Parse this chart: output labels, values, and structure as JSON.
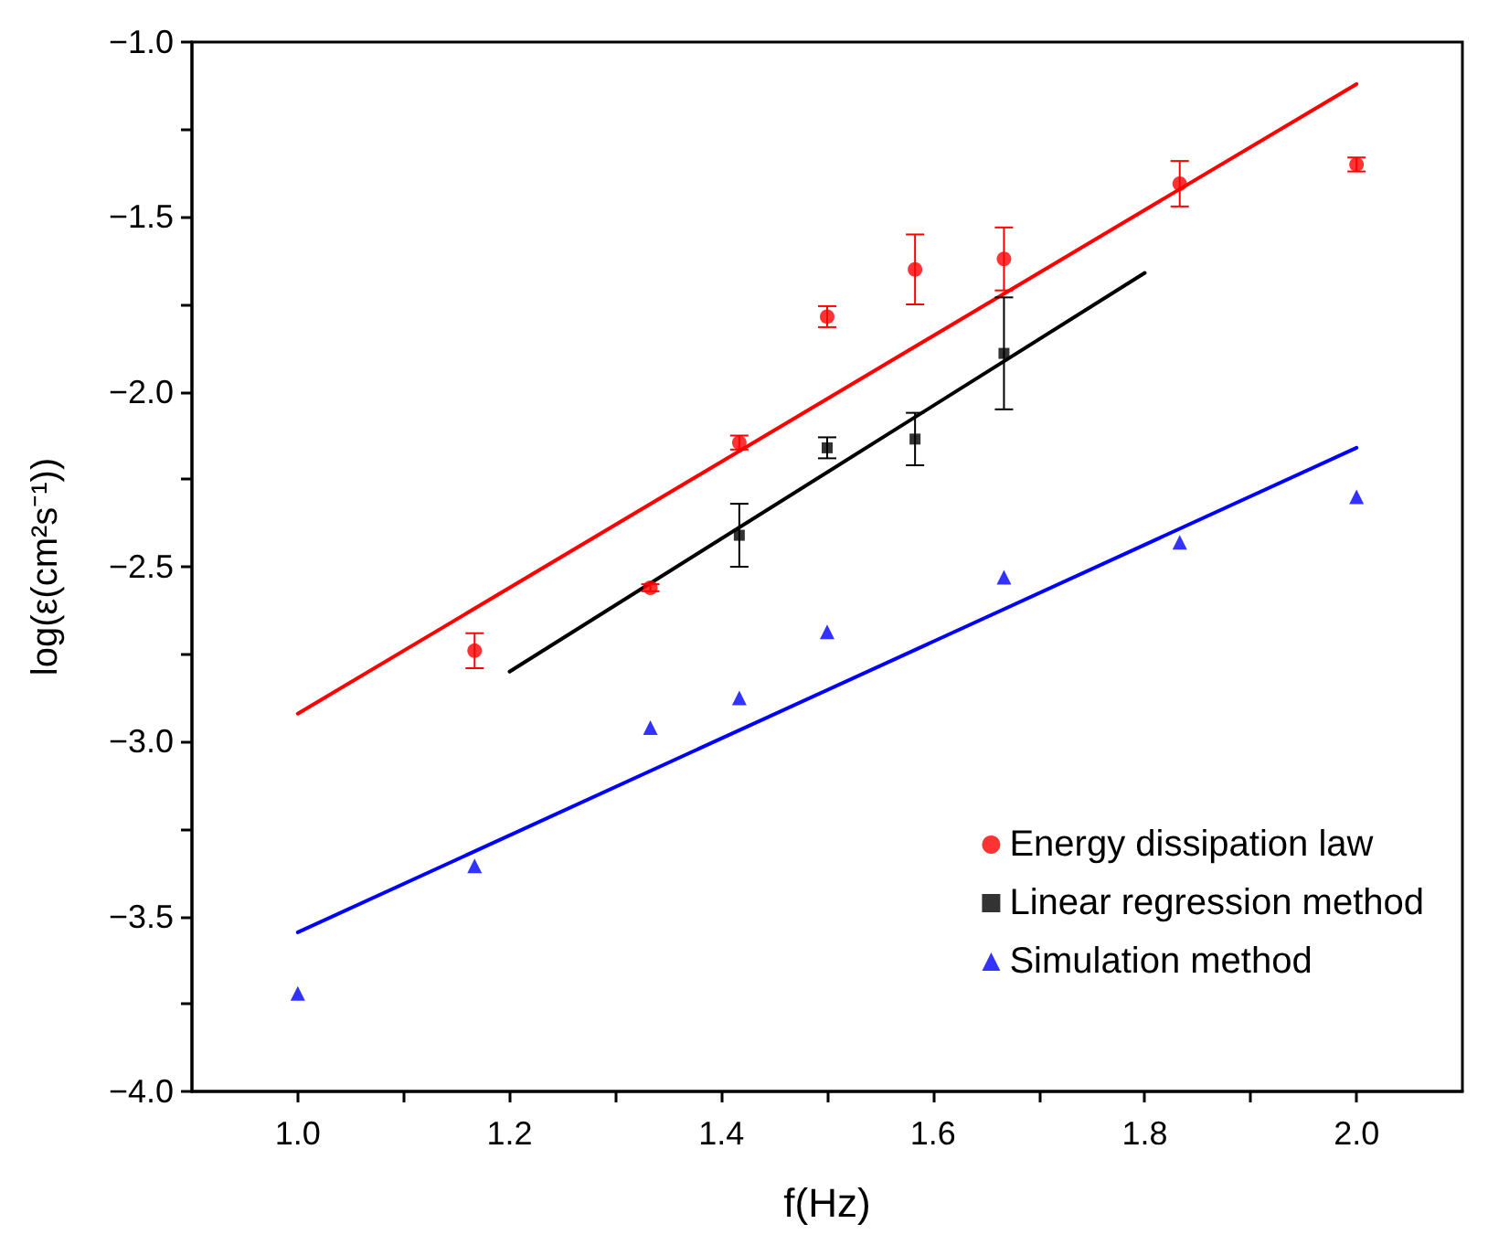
{
  "chart_data": {
    "type": "scatter",
    "xlabel": "f(Hz)",
    "ylabel": "log(ε(cm²s⁻¹))",
    "xlim": [
      0.9,
      2.1
    ],
    "ylim": [
      -4.0,
      -1.0
    ],
    "xticks": [
      {
        "value": 1.0,
        "label": "1.0"
      },
      {
        "value": 1.1,
        "label": null
      },
      {
        "value": 1.2,
        "label": "1.2"
      },
      {
        "value": 1.3,
        "label": null
      },
      {
        "value": 1.4,
        "label": "1.4"
      },
      {
        "value": 1.5,
        "label": null
      },
      {
        "value": 1.6,
        "label": "1.6"
      },
      {
        "value": 1.7,
        "label": null
      },
      {
        "value": 1.8,
        "label": "1.8"
      },
      {
        "value": 1.9,
        "label": null
      },
      {
        "value": 2.0,
        "label": "2.0"
      }
    ],
    "yticks": [
      {
        "value": -4.0,
        "label": "−4.0"
      },
      {
        "value": -3.75,
        "label": null
      },
      {
        "value": -3.5,
        "label": "−3.5"
      },
      {
        "value": -3.25,
        "label": null
      },
      {
        "value": -3.0,
        "label": "−3.0"
      },
      {
        "value": -2.75,
        "label": null
      },
      {
        "value": -2.5,
        "label": "−2.5"
      },
      {
        "value": -2.25,
        "label": null
      },
      {
        "value": -2.0,
        "label": "−2.0"
      },
      {
        "value": -1.75,
        "label": null
      },
      {
        "value": -1.5,
        "label": "−1.5"
      },
      {
        "value": -1.25,
        "label": null
      },
      {
        "value": -1.0,
        "label": "−1.0"
      }
    ],
    "grid": false,
    "legend": "bottom right",
    "series": [
      {
        "name": "Energy dissipation law",
        "marker": "circle",
        "color": "#ff0000",
        "x": [
          1.167,
          1.333,
          1.417,
          1.5,
          1.583,
          1.667,
          1.833,
          2.0
        ],
        "values": [
          -2.74,
          -2.56,
          -2.145,
          -1.785,
          -1.65,
          -1.62,
          -1.405,
          -1.35
        ],
        "errors": [
          0.05,
          0.01,
          0.02,
          0.03,
          0.1,
          0.09,
          0.065,
          0.02
        ]
      },
      {
        "name": "Linear regression method",
        "marker": "square",
        "color": "#000000",
        "x": [
          1.417,
          1.5,
          1.583,
          1.667
        ],
        "values": [
          -2.41,
          -2.16,
          -2.135,
          -1.89
        ],
        "errors": [
          0.09,
          0.03,
          0.075,
          0.16
        ]
      },
      {
        "name": "Simulation method",
        "marker": "triangle",
        "color": "#0000ff",
        "x": [
          1.0,
          1.167,
          1.333,
          1.417,
          1.5,
          1.667,
          1.833,
          2.0
        ],
        "values": [
          -3.72,
          -3.355,
          -2.96,
          -2.875,
          -2.686,
          -2.53,
          -2.43,
          -2.3
        ]
      },
      {
        "type": "line",
        "marker": "none",
        "color": "#ff0000",
        "x": [
          1.0,
          2.0
        ],
        "values": [
          -2.92,
          -1.12
        ]
      },
      {
        "type": "line",
        "marker": "none",
        "color": "#000000",
        "x": [
          1.2,
          1.8
        ],
        "values": [
          -2.8,
          -1.66
        ]
      },
      {
        "type": "line",
        "marker": "none",
        "color": "#0000ff",
        "x": [
          1.0,
          2.0
        ],
        "values": [
          -3.545,
          -2.16
        ]
      }
    ]
  }
}
